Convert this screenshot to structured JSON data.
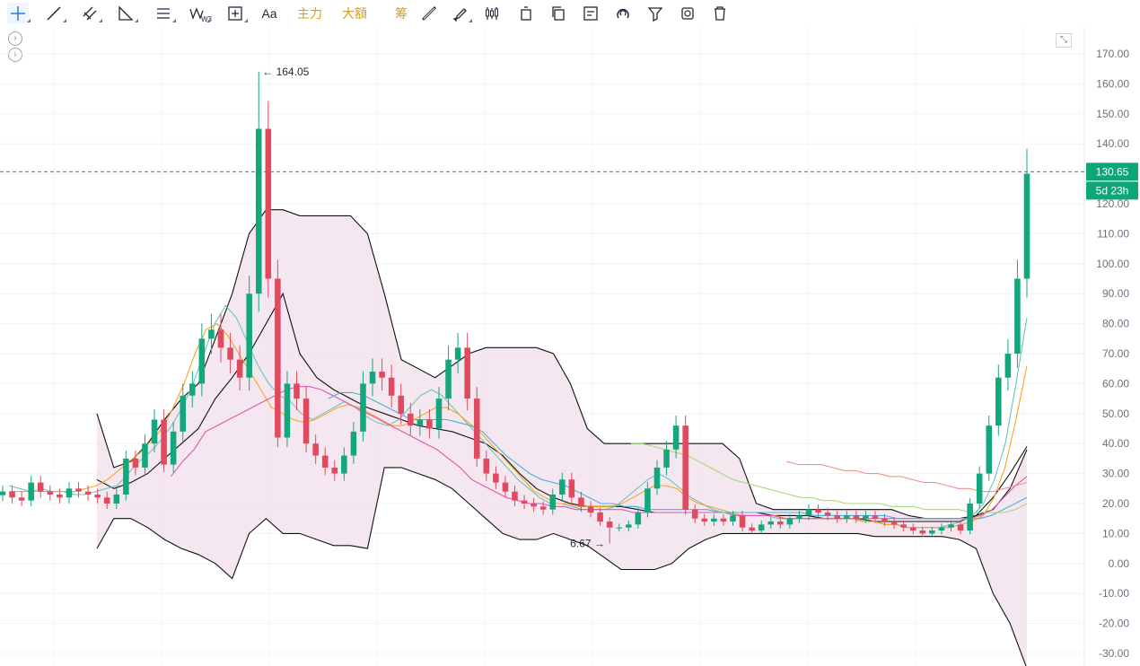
{
  "toolbar": {
    "tools": [
      {
        "icon": "crosshair-icon",
        "label": ""
      },
      {
        "icon": "trend-line-icon",
        "label": ""
      },
      {
        "icon": "parallel-channel-icon",
        "label": ""
      },
      {
        "icon": "triangle-ruler-icon",
        "label": ""
      },
      {
        "icon": "horizontal-lines-icon",
        "label": ""
      },
      {
        "icon": "wave-pattern-icon",
        "label": "W3"
      },
      {
        "icon": "measure-box-icon",
        "label": ""
      },
      {
        "icon": "text-icon",
        "label": "Aa"
      },
      {
        "icon": "",
        "label": "主力"
      },
      {
        "icon": "",
        "label": "大額"
      },
      {
        "icon": "",
        "label": "筹"
      },
      {
        "icon": "ruler-icon",
        "label": ""
      },
      {
        "icon": "brush-icon",
        "label": ""
      },
      {
        "icon": "candles-icon",
        "label": ""
      },
      {
        "icon": "delete-one-icon",
        "label": ""
      },
      {
        "icon": "copy-icon",
        "label": ""
      },
      {
        "icon": "note-icon",
        "label": ""
      },
      {
        "icon": "magnet-icon",
        "label": ""
      },
      {
        "icon": "filter-icon",
        "label": ""
      },
      {
        "icon": "sync-icon",
        "label": ""
      },
      {
        "icon": "trash-icon",
        "label": ""
      }
    ]
  },
  "chart_data": {
    "type": "candlestick",
    "yaxis": {
      "min": -30,
      "max": 170,
      "ticks": [
        "170.00",
        "160.00",
        "150.00",
        "140.00",
        "130.00",
        "120.00",
        "110.00",
        "100.00",
        "90.00",
        "80.00",
        "70.00",
        "60.00",
        "50.00",
        "40.00",
        "30.00",
        "20.00",
        "10.00",
        "0.00",
        "-10.00",
        "-20.00",
        "-30.00"
      ]
    },
    "grid": true,
    "current_price": {
      "value": 130.65,
      "label": "130.65",
      "countdown": "5d 23h",
      "color": "#0ca678"
    },
    "annotations": {
      "high_label": "164.05",
      "high_value": 164.05,
      "low_label": "6.67",
      "low_value": 6.67
    },
    "colors": {
      "up": "#14a77d",
      "down": "#e04a5f",
      "band_fill": "#f4e4ee",
      "band_line": "#111111",
      "ma_lines": [
        "#6cc4b8",
        "#f5a623",
        "#e056b0",
        "#4ab0d9",
        "#a3d977",
        "#f0908a"
      ]
    },
    "close_path": [
      24,
      22,
      21,
      27,
      24,
      23,
      22,
      25,
      24,
      23,
      22,
      20,
      23,
      35,
      32,
      40,
      48,
      33,
      44,
      56,
      60,
      75,
      78,
      72,
      68,
      62,
      90,
      145,
      95,
      42,
      60,
      55,
      40,
      36,
      32,
      30,
      36,
      44,
      60,
      64,
      62,
      56,
      50,
      46,
      48,
      45,
      55,
      68,
      72,
      55,
      35,
      30,
      27,
      24,
      21,
      20,
      19,
      18,
      23,
      28,
      22,
      19,
      17,
      14,
      12,
      12,
      13,
      17,
      25,
      32,
      38,
      46,
      18,
      15,
      14,
      15,
      14,
      16,
      12,
      11,
      13,
      14,
      13,
      15,
      16,
      18,
      17,
      16,
      15,
      16,
      15,
      16,
      15,
      14,
      13,
      12,
      11,
      10,
      11,
      12,
      13,
      11,
      20,
      30,
      46,
      62,
      70,
      95,
      130
    ],
    "series_trend": [
      {
        "name": "",
        "values": [
          26,
          25,
          24,
          25,
          24,
          24,
          23,
          23,
          24,
          25,
          26,
          30,
          34,
          37,
          41,
          46,
          52,
          60,
          70,
          80,
          86,
          82,
          74,
          66,
          60,
          56,
          54,
          50,
          48,
          50,
          52,
          54,
          52,
          49,
          47,
          46,
          48,
          52,
          56,
          58,
          56,
          52,
          48,
          44,
          40,
          36,
          32,
          28,
          25,
          22,
          20,
          20,
          19,
          18,
          18,
          18,
          19,
          22,
          25,
          28,
          30,
          28,
          25,
          22,
          20,
          18,
          17,
          16,
          16,
          16,
          16,
          15,
          15,
          15,
          15,
          15,
          15,
          15,
          15,
          14,
          14,
          13,
          13,
          12,
          12,
          12,
          12,
          13,
          14,
          16,
          20,
          28,
          40,
          60,
          82
        ]
      },
      {
        "name": "",
        "values": [
          24,
          24,
          24,
          24,
          24,
          24,
          24,
          25,
          26,
          28,
          31,
          34,
          37,
          41,
          45,
          52,
          60,
          70,
          78,
          80,
          76,
          70,
          64,
          58,
          52,
          50,
          48,
          47,
          48,
          50,
          52,
          53,
          52,
          50,
          48,
          46,
          46,
          48,
          50,
          52,
          52,
          50,
          47,
          44,
          40,
          36,
          32,
          28,
          24,
          22,
          20,
          20,
          19,
          19,
          19,
          19,
          20,
          22,
          24,
          26,
          26,
          25,
          22,
          20,
          19,
          18,
          17,
          16,
          16,
          16,
          16,
          15,
          15,
          15,
          15,
          15,
          15,
          15,
          14,
          14,
          13,
          13,
          12,
          12,
          12,
          12,
          12,
          13,
          14,
          16,
          22,
          32,
          48,
          66
        ]
      },
      {
        "name": "",
        "values": [
          null,
          null,
          null,
          null,
          null,
          null,
          null,
          null,
          null,
          null,
          null,
          null,
          null,
          null,
          29,
          34,
          38,
          44,
          46,
          48,
          50,
          52,
          54,
          56,
          58,
          59,
          59,
          58,
          56,
          54,
          52,
          50,
          48,
          46,
          44,
          42,
          40,
          38,
          35,
          32,
          28,
          26,
          24,
          22,
          21,
          20,
          20,
          19,
          19,
          18,
          18,
          18,
          18,
          18,
          17,
          17,
          17,
          17,
          17,
          17,
          17,
          17,
          17,
          16,
          16,
          16,
          16,
          15,
          15,
          15,
          15,
          15,
          15,
          15,
          15,
          15,
          15,
          15,
          15,
          15,
          15,
          15,
          15,
          15,
          16,
          18,
          22,
          26,
          29
        ]
      },
      {
        "name": "",
        "values": [
          null,
          null,
          null,
          null,
          null,
          null,
          null,
          null,
          null,
          null,
          null,
          null,
          null,
          null,
          null,
          null,
          null,
          null,
          null,
          null,
          null,
          null,
          null,
          null,
          null,
          null,
          null,
          55,
          57,
          57,
          56,
          54,
          52,
          50,
          48,
          48,
          48,
          48,
          47,
          46,
          44,
          40,
          36,
          33,
          30,
          28,
          27,
          26,
          24,
          22,
          20,
          20,
          19,
          19,
          18,
          18,
          18,
          18,
          18,
          18,
          17,
          17,
          17,
          17,
          17,
          17,
          17,
          17,
          16,
          16,
          16,
          16,
          16,
          16,
          16,
          15,
          15,
          15,
          15,
          15,
          15,
          15,
          15,
          16,
          18,
          20,
          22
        ]
      },
      {
        "name": "",
        "values": [
          null,
          null,
          null,
          null,
          null,
          null,
          null,
          null,
          null,
          null,
          null,
          null,
          null,
          null,
          null,
          null,
          null,
          null,
          null,
          null,
          null,
          null,
          null,
          null,
          null,
          null,
          null,
          null,
          null,
          null,
          null,
          null,
          null,
          null,
          null,
          null,
          null,
          null,
          null,
          null,
          null,
          null,
          null,
          null,
          null,
          null,
          null,
          null,
          null,
          null,
          null,
          null,
          null,
          null,
          null,
          40,
          40,
          39,
          38,
          37,
          36,
          34,
          32,
          30,
          28,
          27,
          26,
          25,
          24,
          23,
          22,
          22,
          21,
          21,
          20,
          20,
          20,
          20,
          19,
          19,
          19,
          18,
          18,
          18,
          18,
          17,
          17,
          17,
          17,
          18,
          20
        ]
      },
      {
        "name": "",
        "values": [
          null,
          null,
          null,
          null,
          null,
          null,
          null,
          null,
          null,
          null,
          null,
          null,
          null,
          null,
          null,
          null,
          null,
          null,
          null,
          null,
          null,
          null,
          null,
          null,
          null,
          null,
          null,
          null,
          null,
          null,
          null,
          null,
          null,
          null,
          null,
          null,
          null,
          null,
          null,
          null,
          null,
          null,
          null,
          null,
          null,
          null,
          null,
          null,
          null,
          null,
          null,
          null,
          null,
          null,
          null,
          null,
          null,
          null,
          null,
          null,
          null,
          null,
          null,
          null,
          null,
          null,
          null,
          null,
          34,
          33,
          33,
          33,
          32,
          31,
          31,
          30,
          30,
          29,
          29,
          28,
          27,
          27,
          26,
          25,
          25,
          24,
          24,
          25,
          26,
          27
        ]
      }
    ],
    "bollinger": {
      "upper": [
        50,
        32,
        34,
        40,
        48,
        55,
        60,
        75,
        90,
        110,
        118,
        118,
        116,
        116,
        116,
        116,
        110,
        90,
        68,
        65,
        62,
        66,
        70,
        72,
        72,
        72,
        72,
        70,
        60,
        45,
        40,
        40,
        40,
        40,
        40,
        40,
        40,
        40,
        35,
        20,
        18,
        18,
        18,
        18,
        18,
        18,
        18,
        18,
        16,
        15,
        15,
        15,
        16,
        18,
        25,
        38
      ],
      "middle": [
        28,
        25,
        27,
        30,
        35,
        40,
        45,
        55,
        62,
        70,
        80,
        90,
        70,
        62,
        58,
        55,
        52,
        50,
        48,
        46,
        45,
        44,
        42,
        40,
        36,
        30,
        25,
        22,
        20,
        19,
        19,
        19,
        18,
        17,
        17,
        17,
        17,
        17,
        17,
        17,
        16,
        16,
        16,
        15,
        15,
        15,
        14,
        14,
        14,
        14,
        14,
        14,
        16,
        22,
        30,
        39
      ],
      "lower": [
        5,
        15,
        15,
        12,
        8,
        5,
        3,
        0,
        -5,
        10,
        15,
        10,
        10,
        8,
        6,
        6,
        5,
        32,
        32,
        30,
        28,
        25,
        20,
        15,
        10,
        8,
        8,
        10,
        8,
        6,
        2,
        -2,
        -2,
        -2,
        0,
        5,
        8,
        10,
        10,
        10,
        10,
        10,
        10,
        10,
        10,
        10,
        9,
        9,
        9,
        9,
        9,
        8,
        5,
        -10,
        -20,
        -35
      ]
    }
  }
}
